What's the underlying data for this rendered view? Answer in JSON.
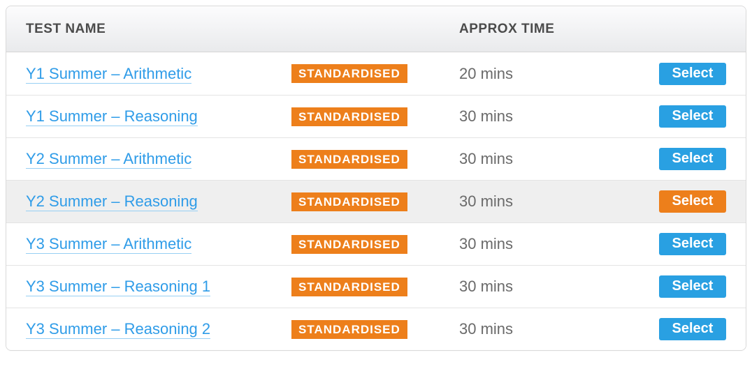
{
  "colors": {
    "link": "#2f9ce8",
    "link_underline": "#97cff4",
    "badge_bg": "#ed7f1b",
    "btn_blue": "#29a0e2",
    "btn_orange": "#ed7f1b",
    "header_text": "#4b4b4b",
    "time_text": "#6a6a6a",
    "row_selected_bg": "#efefef",
    "border": "#d9d9d9"
  },
  "header": {
    "name": "TEST NAME",
    "time": "APPROX TIME"
  },
  "badge_label": "STANDARDISED",
  "select_label": "Select",
  "rows": [
    {
      "name": "Y1 Summer – Arithmetic",
      "time": "20 mins",
      "selected": false
    },
    {
      "name": "Y1 Summer – Reasoning",
      "time": "30 mins",
      "selected": false
    },
    {
      "name": "Y2 Summer – Arithmetic",
      "time": "30 mins",
      "selected": false
    },
    {
      "name": "Y2 Summer – Reasoning",
      "time": "30 mins",
      "selected": true
    },
    {
      "name": "Y3 Summer – Arithmetic",
      "time": "30 mins",
      "selected": false
    },
    {
      "name": "Y3 Summer – Reasoning 1",
      "time": "30 mins",
      "selected": false
    },
    {
      "name": "Y3 Summer – Reasoning 2",
      "time": "30 mins",
      "selected": false
    }
  ]
}
